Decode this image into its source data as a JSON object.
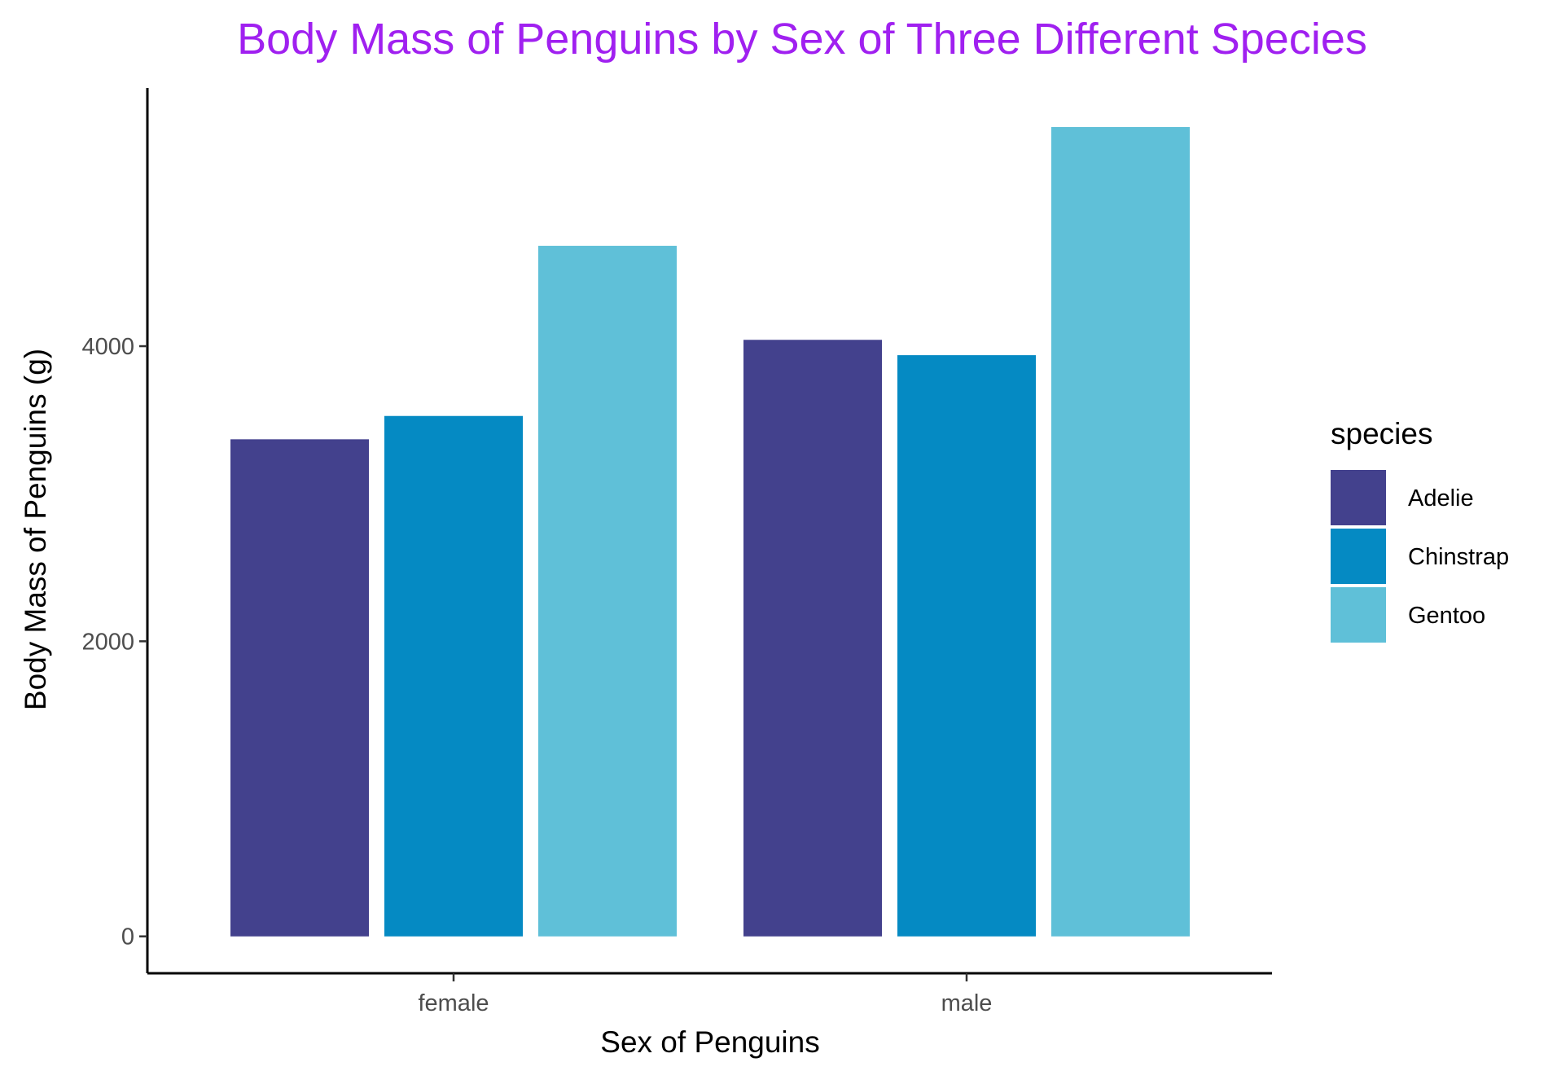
{
  "chart_data": {
    "type": "bar",
    "title": "Body Mass of Penguins by Sex of Three Different Species",
    "xlabel": "Sex of Penguins",
    "ylabel": "Body Mass of Penguins (g)",
    "categories": [
      "female",
      "male"
    ],
    "series": [
      {
        "name": "Adelie",
        "values": [
          3369,
          4043
        ],
        "color": "#43418D"
      },
      {
        "name": "Chinstrap",
        "values": [
          3527,
          3939
        ],
        "color": "#058AC3"
      },
      {
        "name": "Gentoo",
        "values": [
          4680,
          5485
        ],
        "color": "#5FC0D8"
      }
    ],
    "ylim": [
      -250,
      5750
    ],
    "yticks": [
      0,
      2000,
      4000
    ],
    "legend": {
      "title": "species",
      "position": "right"
    },
    "grid": false
  },
  "colors": {
    "title": "#A020F0",
    "axis": "#000000",
    "tick_text": "#4d4d4d"
  }
}
